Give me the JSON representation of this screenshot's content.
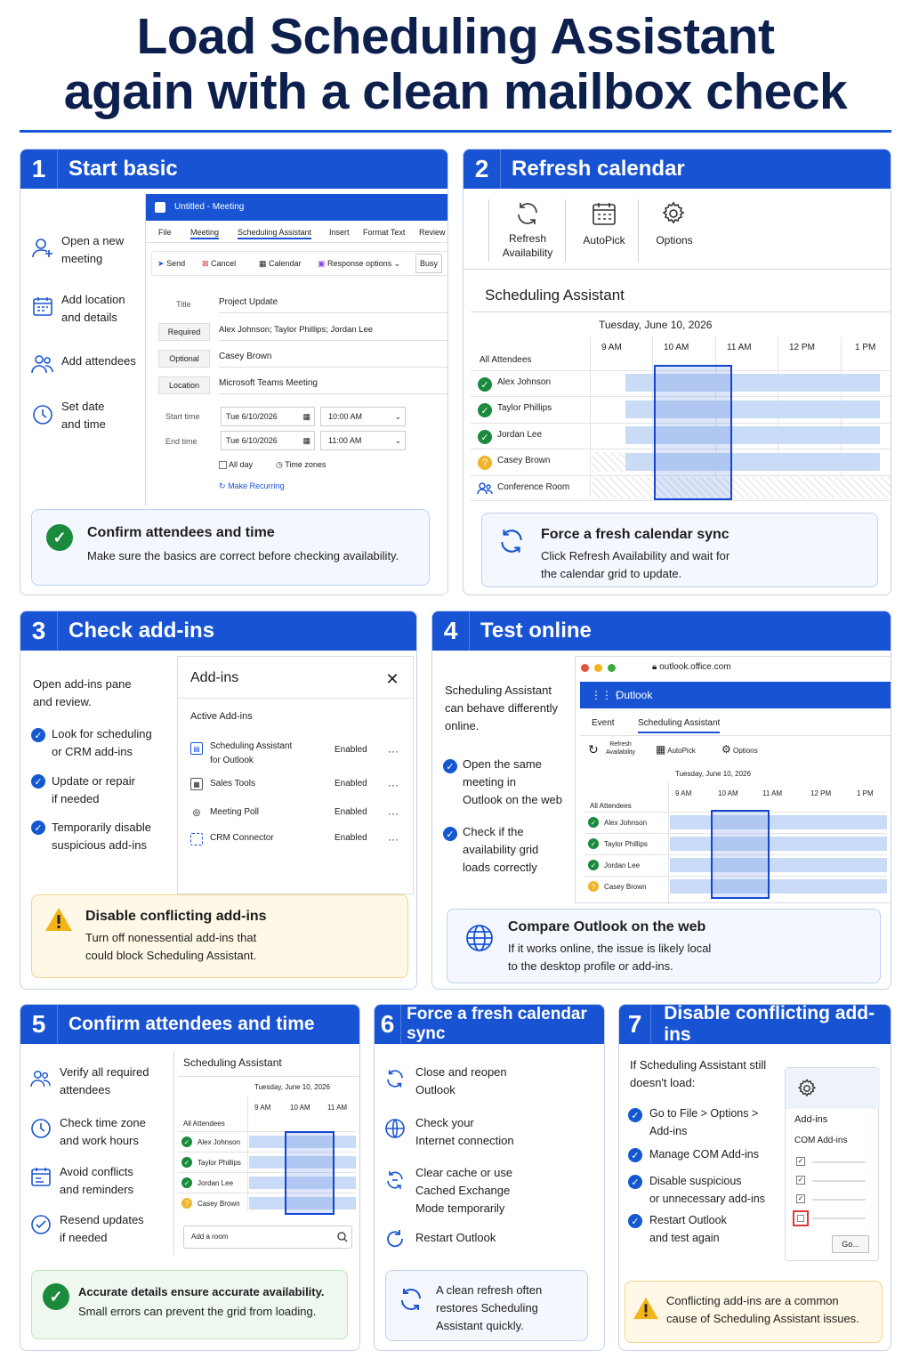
{
  "title": {
    "line1": "Load Scheduling Assistant",
    "line2": "again with a clean mailbox check"
  },
  "colors": {
    "brand": "#1853d3",
    "navy": "#0c1f4d",
    "green": "#1a8a3c",
    "yellow": "#f0b428"
  },
  "p1": {
    "num": "1",
    "heading": "Start basic",
    "steps": [
      {
        "icon": "add-person-icon",
        "label": "Open a new\nmeeting"
      },
      {
        "icon": "calendar-icon",
        "label": "Add location\nand details"
      },
      {
        "icon": "people-icon",
        "label": "Add attendees"
      },
      {
        "icon": "clock-icon",
        "label": "Set date\nand time"
      }
    ],
    "window": {
      "title": "Untitled - Meeting",
      "tabs": [
        "File",
        "Meeting",
        "Scheduling Assistant",
        "Insert",
        "Format Text",
        "Review"
      ],
      "toolbar": [
        "Send",
        "Cancel",
        "Calendar",
        "Response options",
        "Busy"
      ],
      "title_label": "Title",
      "title_value": "Project Update",
      "required_label": "Required",
      "required_value": "Alex Johnson; Taylor Phillips; Jordan Lee",
      "optional_label": "Optional",
      "optional_value": "Casey Brown",
      "location_label": "Location",
      "location_value": "Microsoft Teams Meeting",
      "start_label": "Start time",
      "start_date": "Tue 6/10/2026",
      "start_time": "10:00 AM",
      "end_label": "End time",
      "end_date": "Tue 6/10/2026",
      "end_time": "11:00 AM",
      "allday": "All day",
      "timezones": "Time zones",
      "recurring": "Make Recurring"
    },
    "callout": {
      "title": "Confirm attendees and time",
      "text": "Make sure the basics are correct before checking availability."
    }
  },
  "p2": {
    "num": "2",
    "heading": "Refresh calendar",
    "ribbon": [
      {
        "icon": "refresh-icon",
        "label": "Refresh\nAvailability"
      },
      {
        "icon": "calendar-grid-icon",
        "label": "AutoPick"
      },
      {
        "icon": "gear-icon",
        "label": "Options"
      }
    ],
    "sa_title": "Scheduling Assistant",
    "date": "Tuesday, June 10, 2026",
    "hours": [
      "9 AM",
      "10 AM",
      "11 AM",
      "12 PM",
      "1 PM"
    ],
    "all_attendees": "All Attendees",
    "attendees": [
      "Alex Johnson",
      "Taylor Phillips",
      "Jordan Lee",
      "Casey Brown",
      "Conference Room"
    ],
    "callout": {
      "title": "Force a fresh calendar sync",
      "text": "Click Refresh Availability and wait for\nthe calendar grid to update."
    }
  },
  "p3": {
    "num": "3",
    "heading": "Check add-ins",
    "intro": "Open add-ins pane\nand review.",
    "bullets": [
      "Look for scheduling\nor CRM add-ins",
      "Update or repair\nif needed",
      "Temporarily disable\nsuspicious add-ins"
    ],
    "pane_title": "Add-ins",
    "active": "Active Add-ins",
    "addins": [
      {
        "name": "Scheduling Assistant\nfor Outlook",
        "status": "Enabled"
      },
      {
        "name": "Sales Tools",
        "status": "Enabled"
      },
      {
        "name": "Meeting Poll",
        "status": "Enabled"
      },
      {
        "name": "CRM Connector",
        "status": "Enabled"
      }
    ],
    "more": "···",
    "callout": {
      "title": "Disable conflicting add-ins",
      "text": "Turn off nonessential add-ins that\ncould block Scheduling Assistant."
    }
  },
  "p4": {
    "num": "4",
    "heading": "Test online",
    "intro": "Scheduling Assistant\ncan behave differently\nonline.",
    "bullets": [
      "Open the same\nmeeting in\nOutlook on the web",
      "Check if the\navailability grid\nloads correctly"
    ],
    "url": "outlook.office.com",
    "app": "Outlook",
    "tabs": [
      "Event",
      "Scheduling Assistant"
    ],
    "ribbon": [
      "Refresh\nAvailability",
      "AutoPick",
      "Options"
    ],
    "date": "Tuesday, June 10, 2026",
    "hours": [
      "9 AM",
      "10 AM",
      "11 AM",
      "12 PM",
      "1 PM"
    ],
    "all_attendees": "All Attendees",
    "attendees": [
      "Alex Johnson",
      "Taylor Phillips",
      "Jordan Lee",
      "Casey Brown"
    ],
    "callout": {
      "title": "Compare Outlook on the web",
      "text": "If it works online, the issue is likely local\nto the desktop profile or add-ins."
    }
  },
  "p5": {
    "num": "5",
    "heading": "Confirm attendees and time",
    "steps": [
      "Verify all required\nattendees",
      "Check time zone\nand work hours",
      "Avoid conflicts\nand reminders",
      "Resend updates\nif needed"
    ],
    "sa_title": "Scheduling Assistant",
    "date": "Tuesday, June 10, 2026",
    "hours": [
      "9 AM",
      "10 AM",
      "11 AM"
    ],
    "all_attendees": "All Attendees",
    "attendees": [
      "Alex Johnson",
      "Taylor Phillips",
      "Jordan Lee",
      "Casey Brown"
    ],
    "add_room": "Add a room",
    "callout": {
      "title": "Accurate details ensure accurate availability.",
      "text": "Small errors can prevent the grid from loading."
    }
  },
  "p6": {
    "num": "6",
    "heading": "Force a fresh calendar sync",
    "steps": [
      "Close and reopen\nOutlook",
      "Check your\nInternet connection",
      "Clear cache or use\nCached Exchange\nMode temporarily",
      "Restart Outlook"
    ],
    "callout": {
      "text": "A clean refresh often\nrestores Scheduling\nAssistant quickly."
    }
  },
  "p7": {
    "num": "7",
    "heading": "Disable conflicting add-ins",
    "intro": "If Scheduling Assistant still\ndoesn't load:",
    "bullets": [
      "Go to File > Options >\nAdd-ins",
      "Manage COM Add-ins",
      "Disable suspicious\nor unnecessary add-ins",
      "Restart Outlook\nand test again"
    ],
    "box_title": "Add-ins",
    "box_sub": "COM Add-ins",
    "go": "Go...",
    "callout": {
      "text": "Conflicting add-ins are a common\ncause of Scheduling Assistant issues."
    }
  }
}
